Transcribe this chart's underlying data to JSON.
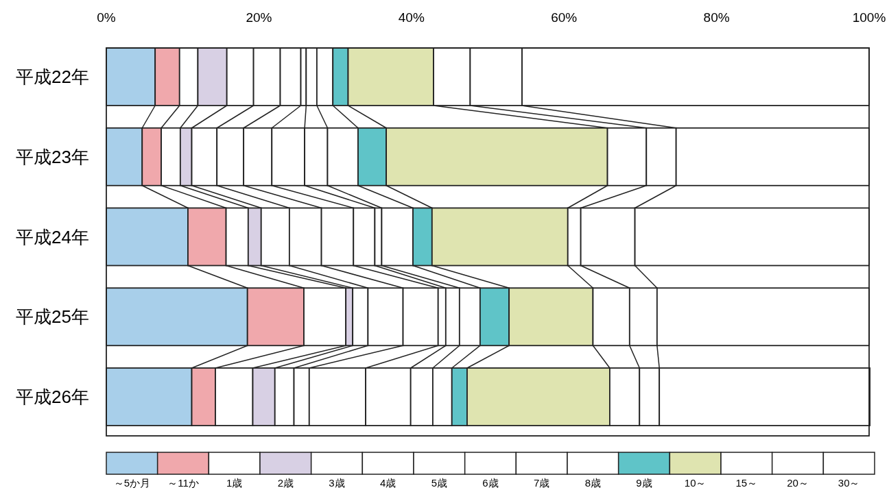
{
  "chart_data": {
    "type": "bar",
    "orientation": "horizontal",
    "stacked": true,
    "legend": "bottom",
    "categories": [
      "平成22年",
      "平成23年",
      "平成24年",
      "平成25年",
      "平成26年"
    ],
    "xlim": [
      0,
      100
    ],
    "xticks": [
      {
        "value": 0,
        "label": "0%"
      },
      {
        "value": 20,
        "label": "20%"
      },
      {
        "value": 40,
        "label": "40%"
      },
      {
        "value": 60,
        "label": "60%"
      },
      {
        "value": 80,
        "label": "80%"
      },
      {
        "value": 100,
        "label": "100%"
      }
    ],
    "series": [
      {
        "name": "～5か月",
        "color": "#a8cfea",
        "values": [
          6.4,
          4.7,
          10.7,
          18.5,
          11.2
        ]
      },
      {
        "name": "～11か",
        "color": "#f0a8ac",
        "values": [
          3.2,
          2.5,
          5.0,
          7.4,
          3.1
        ]
      },
      {
        "name": "1歳",
        "color": "#ffffff",
        "values": [
          2.4,
          2.5,
          2.9,
          5.5,
          4.9
        ]
      },
      {
        "name": "2歳",
        "color": "#d8d0e4",
        "values": [
          3.8,
          1.5,
          1.7,
          0.9,
          2.9
        ]
      },
      {
        "name": "3歳",
        "color": "#ffffff",
        "values": [
          3.5,
          3.3,
          3.7,
          2.0,
          2.5
        ]
      },
      {
        "name": "4歳",
        "color": "#ffffff",
        "values": [
          3.5,
          3.5,
          4.2,
          4.6,
          2.0
        ]
      },
      {
        "name": "5歳",
        "color": "#ffffff",
        "values": [
          2.7,
          3.7,
          4.2,
          4.6,
          7.4
        ]
      },
      {
        "name": "6歳",
        "color": "#ffffff",
        "values": [
          0.7,
          4.3,
          2.8,
          1.0,
          5.9
        ]
      },
      {
        "name": "7歳",
        "color": "#ffffff",
        "values": [
          1.4,
          3.0,
          0.9,
          1.8,
          2.9
        ]
      },
      {
        "name": "8歳",
        "color": "#ffffff",
        "values": [
          2.1,
          4.0,
          4.1,
          2.7,
          2.5
        ]
      },
      {
        "name": "9歳",
        "color": "#5fc4c8",
        "values": [
          2.0,
          3.7,
          2.5,
          3.8,
          2.0
        ]
      },
      {
        "name": "10～",
        "color": "#dfe4b0",
        "values": [
          11.2,
          29.0,
          17.8,
          11.0,
          18.7
        ]
      },
      {
        "name": "15～",
        "color": "#ffffff",
        "values": [
          4.8,
          5.1,
          1.7,
          4.8,
          3.9
        ]
      },
      {
        "name": "20～",
        "color": "#ffffff",
        "values": [
          6.8,
          3.9,
          7.1,
          3.6,
          2.6
        ]
      },
      {
        "name": "30～",
        "color": "#ffffff",
        "values": [
          45.5,
          25.3,
          30.7,
          27.8,
          27.6
        ]
      }
    ]
  }
}
